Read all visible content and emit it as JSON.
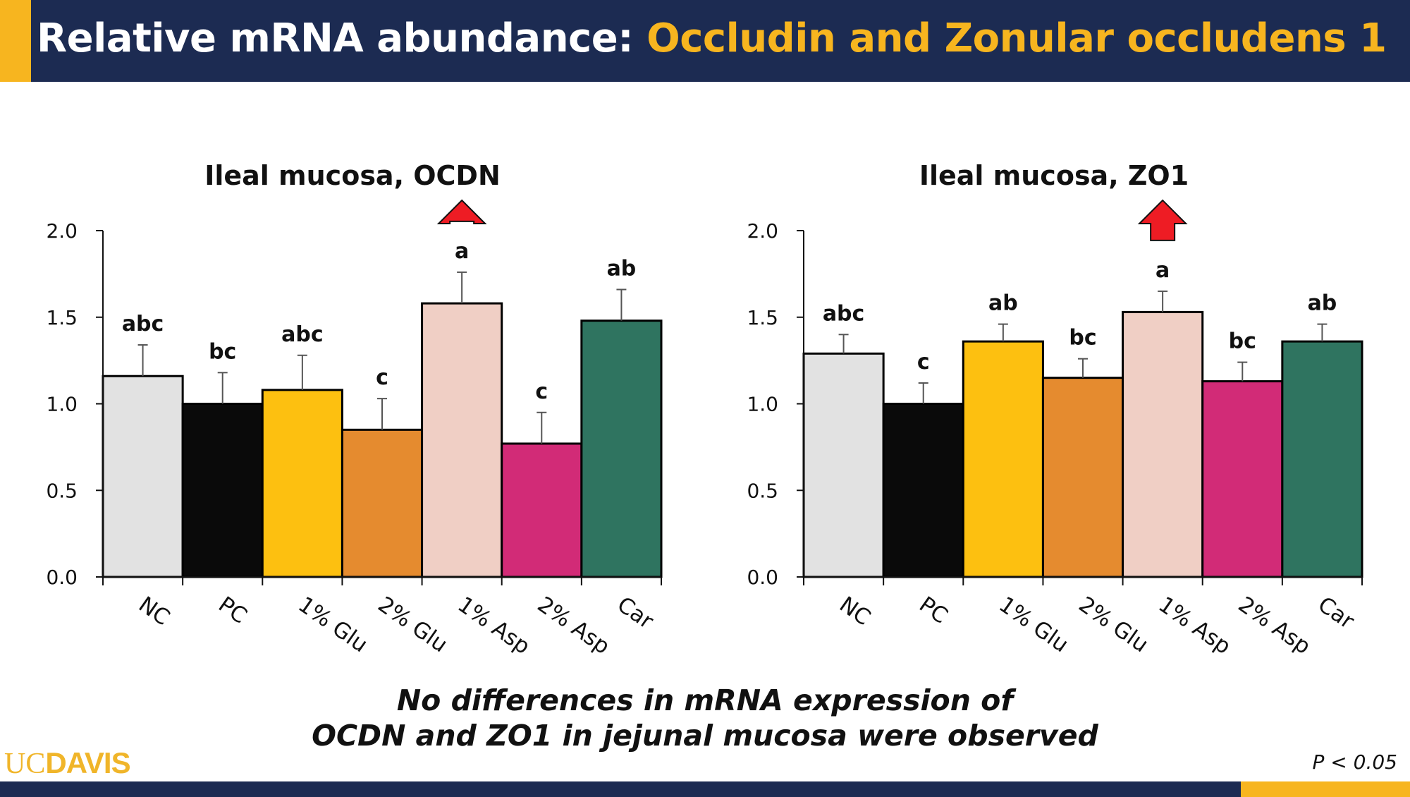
{
  "header": {
    "title_part1": "Relative mRNA abundance: ",
    "title_part2": "Occludin and Zonular occludens 1"
  },
  "colors": {
    "navy": "#1c2b52",
    "gold": "#f7b51f",
    "arrow": "#ee1c24"
  },
  "chart_data": [
    {
      "type": "bar",
      "title": "Ileal mucosa, OCDN",
      "categories": [
        "NC",
        "PC",
        "1% Glu",
        "2% Glu",
        "1% Asp",
        "2% Asp",
        "Car"
      ],
      "values": [
        1.16,
        1.0,
        1.08,
        0.85,
        1.58,
        0.77,
        1.48
      ],
      "errors": [
        0.18,
        0.18,
        0.2,
        0.18,
        0.18,
        0.18,
        0.18
      ],
      "letters": [
        "abc",
        "bc",
        "abc",
        "c",
        "a",
        "c",
        "ab"
      ],
      "colors": [
        "#e2e2e2",
        "#0a0a0a",
        "#fdc010",
        "#e58b2f",
        "#f0cfc5",
        "#d22b77",
        "#2f7460"
      ],
      "highlight_category": "1% Asp",
      "yticks": [
        "0.0",
        "0.5",
        "1.0",
        "1.5",
        "2.0"
      ],
      "ylim": [
        0,
        2.0
      ],
      "xlabel": "",
      "ylabel": "",
      "grid": false,
      "legend": "none"
    },
    {
      "type": "bar",
      "title": "Ileal mucosa, ZO1",
      "categories": [
        "NC",
        "PC",
        "1% Glu",
        "2% Glu",
        "1% Asp",
        "2% Asp",
        "Car"
      ],
      "values": [
        1.29,
        1.0,
        1.36,
        1.15,
        1.53,
        1.13,
        1.36
      ],
      "errors": [
        0.11,
        0.12,
        0.1,
        0.11,
        0.12,
        0.11,
        0.1
      ],
      "letters": [
        "abc",
        "c",
        "ab",
        "bc",
        "a",
        "bc",
        "ab"
      ],
      "colors": [
        "#e2e2e2",
        "#0a0a0a",
        "#fdc010",
        "#e58b2f",
        "#f0cfc5",
        "#d22b77",
        "#2f7460"
      ],
      "highlight_category": "1% Asp",
      "yticks": [
        "0.0",
        "0.5",
        "1.0",
        "1.5",
        "2.0"
      ],
      "ylim": [
        0,
        2.0
      ],
      "xlabel": "",
      "ylabel": "",
      "grid": false,
      "legend": "none"
    }
  ],
  "footnote": {
    "line1": "No differences in mRNA expression of",
    "line2": "OCDN and ZO1 in jejunal mucosa were observed"
  },
  "logo": {
    "part1": "UC",
    "part2": "DAVIS"
  },
  "pvalue": "P < 0.05"
}
